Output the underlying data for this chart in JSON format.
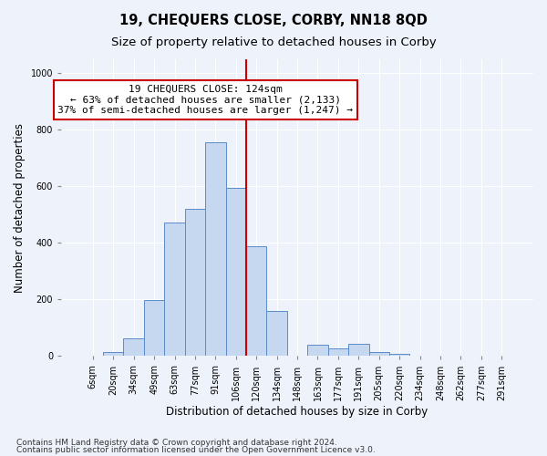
{
  "title": "19, CHEQUERS CLOSE, CORBY, NN18 8QD",
  "subtitle": "Size of property relative to detached houses in Corby",
  "xlabel": "Distribution of detached houses by size in Corby",
  "ylabel": "Number of detached properties",
  "footnote1": "Contains HM Land Registry data © Crown copyright and database right 2024.",
  "footnote2": "Contains public sector information licensed under the Open Government Licence v3.0.",
  "categories": [
    "6sqm",
    "20sqm",
    "34sqm",
    "49sqm",
    "63sqm",
    "77sqm",
    "91sqm",
    "106sqm",
    "120sqm",
    "134sqm",
    "148sqm",
    "163sqm",
    "177sqm",
    "191sqm",
    "205sqm",
    "220sqm",
    "234sqm",
    "248sqm",
    "262sqm",
    "277sqm",
    "291sqm"
  ],
  "values": [
    0,
    13,
    62,
    197,
    472,
    520,
    757,
    596,
    390,
    160,
    0,
    40,
    28,
    43,
    13,
    7,
    0,
    0,
    0,
    0,
    0
  ],
  "bar_color": "#c5d8f0",
  "bar_edge_color": "#5b8cc8",
  "annotation_line1": "19 CHEQUERS CLOSE: 124sqm",
  "annotation_line2": "← 63% of detached houses are smaller (2,133)",
  "annotation_line3": "37% of semi-detached houses are larger (1,247) →",
  "annotation_box_facecolor": "#ffffff",
  "annotation_box_edgecolor": "#cc0000",
  "vline_color": "#cc0000",
  "vline_x_index": 7.5,
  "ylim_max": 1050,
  "background_color": "#eef2fb",
  "grid_color": "#ffffff",
  "title_fontsize": 10.5,
  "subtitle_fontsize": 9.5,
  "axis_label_fontsize": 8.5,
  "tick_fontsize": 7,
  "annotation_fontsize": 8,
  "footnote_fontsize": 6.5
}
